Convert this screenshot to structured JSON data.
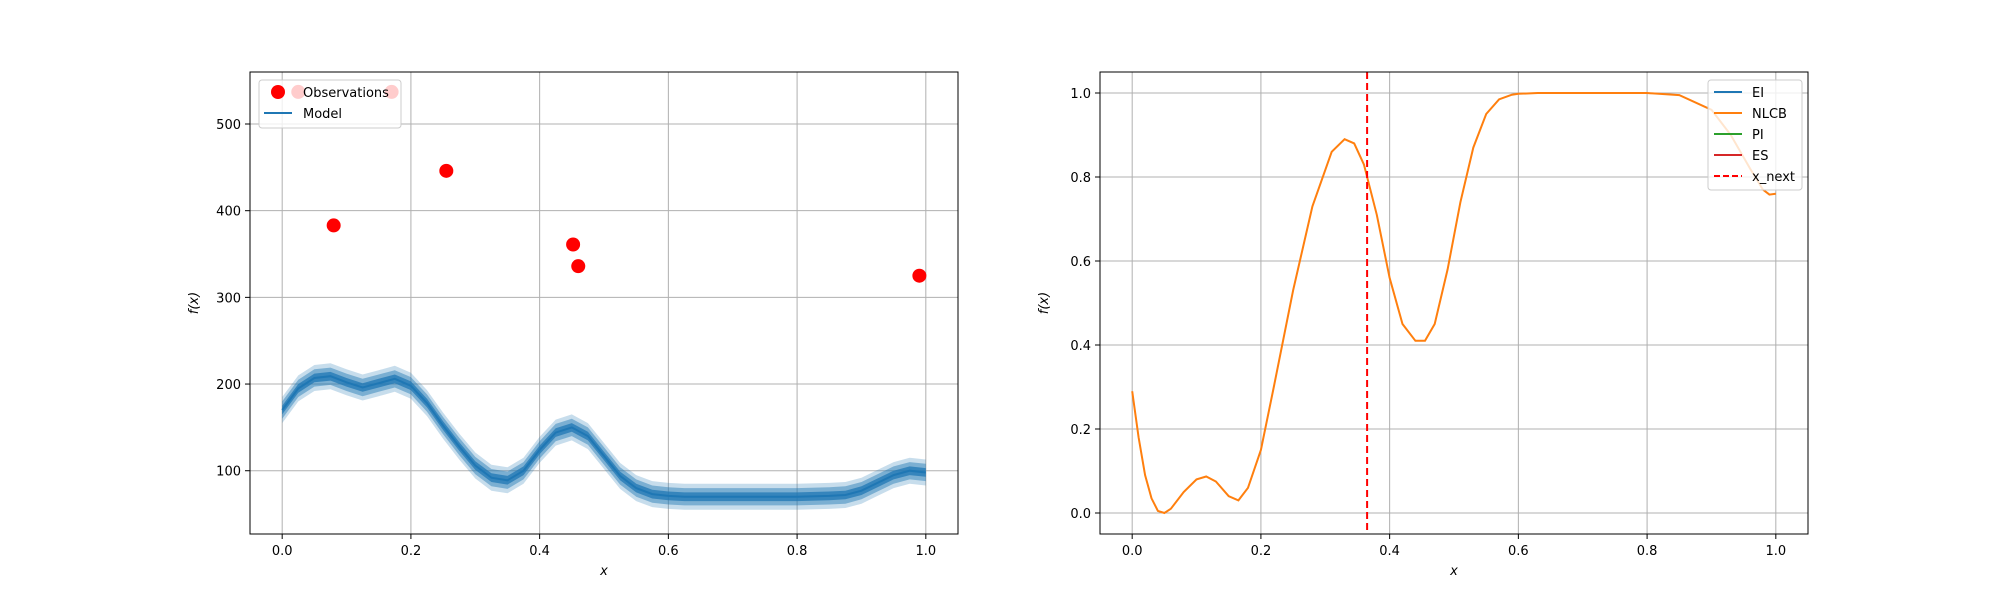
{
  "chart_data": [
    {
      "type": "line",
      "xlabel": "x",
      "ylabel": "f(x)",
      "xlim": [
        -0.05,
        1.05
      ],
      "ylim": [
        27,
        560
      ],
      "xticks": [
        0.0,
        0.2,
        0.4,
        0.6,
        0.8,
        1.0
      ],
      "xtick_labels": [
        "0.0",
        "0.2",
        "0.4",
        "0.6",
        "0.8",
        "1.0"
      ],
      "yticks": [
        100,
        200,
        300,
        400,
        500
      ],
      "ytick_labels": [
        "100",
        "200",
        "300",
        "400",
        "500"
      ],
      "grid": true,
      "legend": {
        "placement": "top-left",
        "entries": [
          "Observations",
          "Model"
        ]
      },
      "observations": {
        "name": "Observations",
        "color": "#ff0000",
        "x": [
          0.025,
          0.08,
          0.17,
          0.255,
          0.452,
          0.46,
          0.99
        ],
        "y": [
          537,
          383,
          537,
          446,
          361,
          336,
          325
        ]
      },
      "model": {
        "name": "Model",
        "color": "#1f77b4",
        "band_color": "#1f77b4",
        "x": [
          0.0,
          0.025,
          0.05,
          0.075,
          0.1,
          0.125,
          0.15,
          0.175,
          0.2,
          0.225,
          0.25,
          0.275,
          0.3,
          0.325,
          0.35,
          0.375,
          0.4,
          0.425,
          0.45,
          0.475,
          0.5,
          0.525,
          0.55,
          0.575,
          0.6,
          0.625,
          0.65,
          0.7,
          0.75,
          0.8,
          0.85,
          0.875,
          0.9,
          0.925,
          0.95,
          0.975,
          1.0
        ],
        "mean": [
          170,
          195,
          207,
          209,
          202,
          196,
          201,
          206,
          198,
          178,
          152,
          128,
          106,
          92,
          89,
          100,
          124,
          144,
          150,
          140,
          117,
          94,
          80,
          73,
          71,
          70,
          70,
          70,
          70,
          70,
          71,
          72,
          77,
          86,
          95,
          100,
          98
        ],
        "band_offsets": [
          5,
          10,
          15
        ]
      }
    },
    {
      "type": "line",
      "xlabel": "x",
      "ylabel": "f(x)",
      "xlim": [
        -0.05,
        1.05
      ],
      "ylim": [
        -0.05,
        1.05
      ],
      "xticks": [
        0.0,
        0.2,
        0.4,
        0.6,
        0.8,
        1.0
      ],
      "xtick_labels": [
        "0.0",
        "0.2",
        "0.4",
        "0.6",
        "0.8",
        "1.0"
      ],
      "yticks": [
        0.0,
        0.2,
        0.4,
        0.6,
        0.8,
        1.0
      ],
      "ytick_labels": [
        "0.0",
        "0.2",
        "0.4",
        "0.6",
        "0.8",
        "1.0"
      ],
      "grid": true,
      "legend": {
        "placement": "top-right",
        "entries": [
          "EI",
          "NLCB",
          "PI",
          "ES",
          "x_next"
        ]
      },
      "series": [
        {
          "name": "EI",
          "color": "#1f77b4",
          "x": [],
          "y": []
        },
        {
          "name": "NLCB",
          "color": "#ff7f0e",
          "x": [
            0.0,
            0.01,
            0.02,
            0.03,
            0.04,
            0.05,
            0.06,
            0.08,
            0.1,
            0.115,
            0.13,
            0.15,
            0.165,
            0.18,
            0.2,
            0.22,
            0.25,
            0.28,
            0.31,
            0.33,
            0.345,
            0.36,
            0.38,
            0.4,
            0.42,
            0.44,
            0.455,
            0.47,
            0.49,
            0.51,
            0.53,
            0.55,
            0.57,
            0.59,
            0.6,
            0.63,
            0.66,
            0.7,
            0.75,
            0.8,
            0.85,
            0.9,
            0.93,
            0.96,
            0.98,
            0.99,
            1.0
          ],
          "y": [
            0.29,
            0.18,
            0.09,
            0.035,
            0.005,
            0.0,
            0.01,
            0.05,
            0.08,
            0.087,
            0.075,
            0.04,
            0.03,
            0.06,
            0.15,
            0.3,
            0.53,
            0.73,
            0.86,
            0.89,
            0.88,
            0.83,
            0.71,
            0.56,
            0.45,
            0.41,
            0.41,
            0.45,
            0.58,
            0.74,
            0.87,
            0.95,
            0.985,
            0.996,
            0.998,
            1.0,
            1.0,
            1.0,
            1.0,
            1.0,
            0.995,
            0.96,
            0.9,
            0.82,
            0.77,
            0.758,
            0.76
          ]
        },
        {
          "name": "PI",
          "color": "#2ca02c",
          "x": [],
          "y": []
        },
        {
          "name": "ES",
          "color": "#d62728",
          "x": [],
          "y": []
        }
      ],
      "x_next": {
        "name": "x_next",
        "value": 0.365,
        "color": "#ff0000",
        "style": "dashed"
      }
    }
  ]
}
